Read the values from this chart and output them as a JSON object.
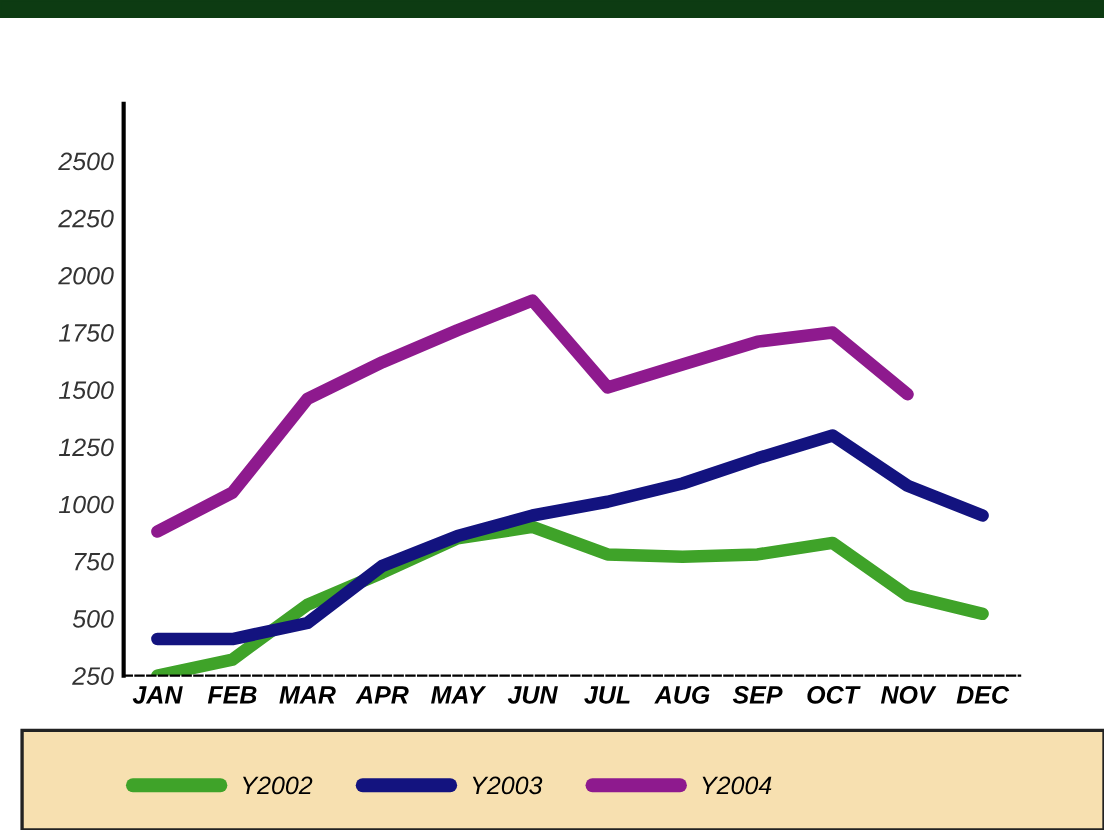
{
  "chart_data": {
    "type": "line",
    "categories": [
      "JAN",
      "FEB",
      "MAR",
      "APR",
      "MAY",
      "JUN",
      "JUL",
      "AUG",
      "SEP",
      "OCT",
      "NOV",
      "DEC"
    ],
    "series": [
      {
        "name": "Y2002",
        "color": "#3fa329",
        "values": [
          250,
          320,
          560,
          700,
          850,
          900,
          780,
          770,
          780,
          830,
          600,
          520
        ]
      },
      {
        "name": "Y2003",
        "color": "#13137f",
        "values": [
          410,
          410,
          480,
          730,
          860,
          950,
          1010,
          1090,
          1200,
          1300,
          1080,
          950
        ]
      },
      {
        "name": "Y2004",
        "color": "#8e1a8e",
        "values": [
          880,
          1050,
          1460,
          1620,
          1760,
          1890,
          1510,
          1610,
          1710,
          1750,
          1480,
          null
        ]
      }
    ],
    "ylim": [
      250,
      2750
    ],
    "yticks": [
      250,
      500,
      750,
      1000,
      1250,
      1500,
      1750,
      2000,
      2250,
      2500
    ],
    "grid": false,
    "legend": "bottom left",
    "marker": "none",
    "line_style": "solid"
  }
}
